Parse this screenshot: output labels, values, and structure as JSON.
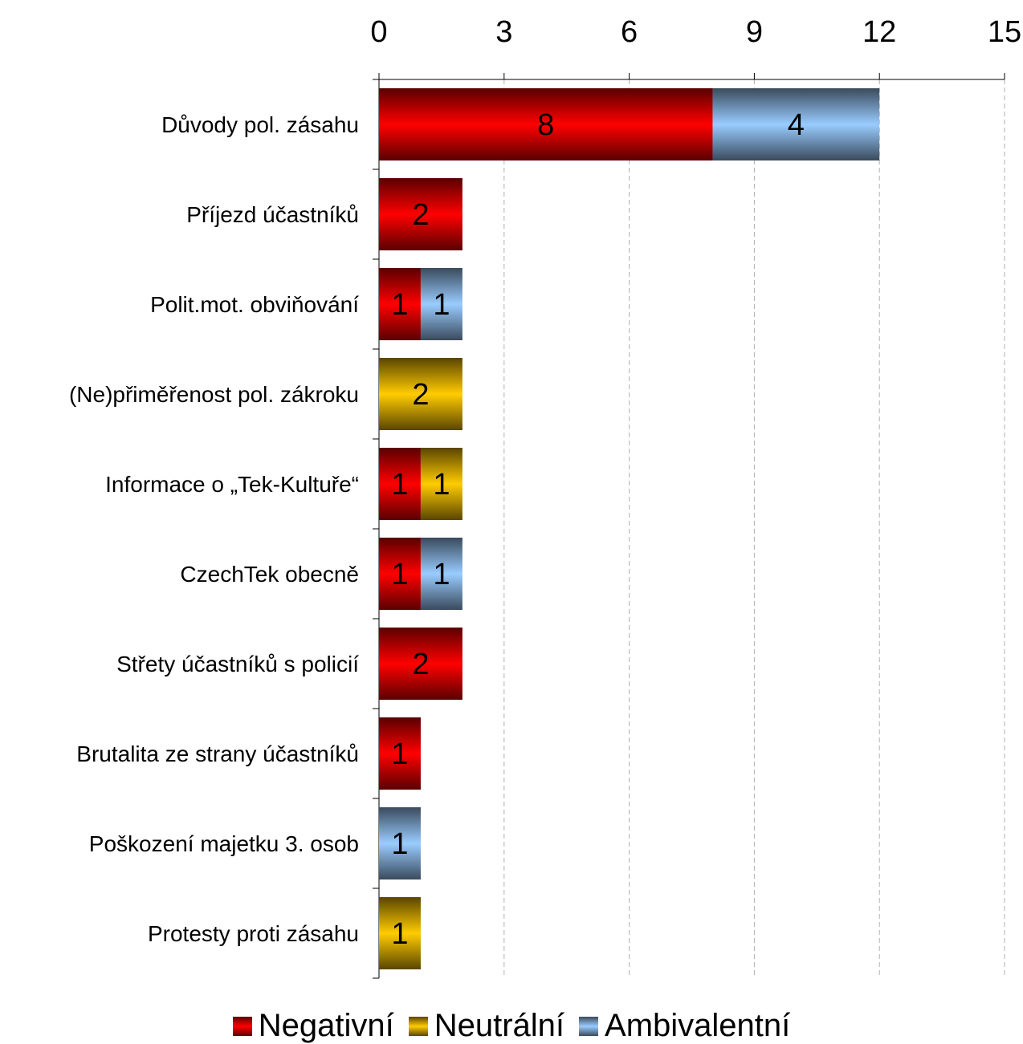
{
  "chart_data": {
    "type": "bar",
    "orientation": "horizontal",
    "stacked": true,
    "categories": [
      "Důvody pol. zásahu",
      "Příjezd účastníků",
      "Polit.mot. obviňování",
      "(Ne)přiměřenost pol. zákroku",
      "Informace o „Tek-Kultuře“",
      "CzechTek obecně",
      "Střety účastníků s policií",
      "Brutalita ze strany účastníků",
      "Poškození majetku 3. osob",
      "Protesty proti zásahu"
    ],
    "series": [
      {
        "name": "Negativní",
        "values": [
          8,
          2,
          1,
          0,
          1,
          1,
          2,
          1,
          0,
          0
        ]
      },
      {
        "name": "Neutrální",
        "values": [
          0,
          0,
          0,
          2,
          1,
          0,
          0,
          0,
          0,
          1
        ]
      },
      {
        "name": "Ambivalentní",
        "values": [
          4,
          0,
          1,
          0,
          0,
          1,
          0,
          0,
          1,
          0
        ]
      }
    ],
    "colors": {
      "Negativní": [
        "#5a0000",
        "#ff0000"
      ],
      "Neutrální": [
        "#5a4500",
        "#ffcc00"
      ],
      "Ambivalentní": [
        "#3a4a5c",
        "#99ccff"
      ]
    },
    "xlim": [
      0,
      15
    ],
    "xticks": [
      "0",
      "3",
      "6",
      "9",
      "12",
      "15"
    ],
    "xaxis_position": "top",
    "grid": "vertical dashed",
    "legend_position": "bottom",
    "data_labels": true
  }
}
